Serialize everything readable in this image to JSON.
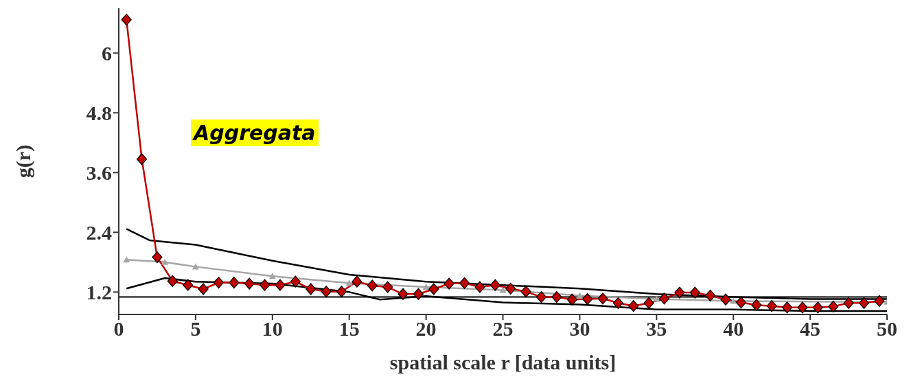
{
  "chart_data": {
    "type": "line",
    "xlabel": "spatial scale r [data units]",
    "ylabel": "g(r)",
    "annotations": [
      "Aggregata"
    ],
    "xlim": [
      0,
      50
    ],
    "xticks": [
      0,
      5,
      10,
      15,
      20,
      25,
      30,
      35,
      40,
      45,
      50
    ],
    "ylim": [
      0.75,
      6.9
    ],
    "yticks": [
      1.2,
      2.4,
      3.6,
      4.8,
      6
    ],
    "grid": false,
    "legend": false,
    "ref_lines": [
      {
        "axis": "y",
        "value": 1.1,
        "color": "#000000"
      }
    ],
    "series": [
      {
        "color": "#000000",
        "marker": "none",
        "x": [
          0.5,
          2,
          5,
          10,
          15,
          20,
          25,
          30,
          35,
          40,
          45,
          50
        ],
        "values": [
          2.47,
          2.24,
          2.15,
          1.83,
          1.55,
          1.41,
          1.34,
          1.27,
          1.16,
          1.1,
          1.06,
          1.06
        ]
      },
      {
        "color": "#000000",
        "marker": "none",
        "x": [
          0.5,
          3,
          5,
          10,
          15,
          17,
          20,
          25,
          30,
          35,
          40,
          45,
          50
        ],
        "values": [
          1.27,
          1.48,
          1.41,
          1.37,
          1.2,
          1.05,
          1.12,
          0.99,
          0.95,
          0.85,
          0.85,
          0.82,
          0.82
        ]
      },
      {
        "color": "#a6a6a6",
        "marker": "triangle",
        "x": [
          0.5,
          3,
          5,
          10,
          15,
          20,
          25,
          30,
          35,
          40,
          50
        ],
        "values": [
          1.85,
          1.8,
          1.71,
          1.52,
          1.38,
          1.3,
          1.24,
          1.13,
          1.06,
          1.02,
          1.0
        ]
      },
      {
        "color": "#c00000",
        "marker": "diamond",
        "x": [
          0.5,
          1.5,
          2.5,
          3.5,
          4.5,
          5.5,
          6.5,
          7.5,
          8.5,
          9.5,
          10.5,
          11.5,
          12.5,
          13.5,
          14.5,
          15.5,
          16.5,
          17.5,
          18.5,
          19.5,
          20.5,
          21.5,
          22.5,
          23.5,
          24.5,
          25.5,
          26.5,
          27.5,
          28.5,
          29.5,
          30.5,
          31.5,
          32.5,
          33.5,
          34.5,
          35.5,
          36.5,
          37.5,
          38.5,
          39.5,
          40.5,
          41.5,
          42.5,
          43.5,
          44.5,
          45.5,
          46.5,
          47.5,
          48.5,
          49.5
        ],
        "values": [
          6.67,
          3.87,
          1.9,
          1.42,
          1.34,
          1.26,
          1.39,
          1.39,
          1.37,
          1.34,
          1.34,
          1.41,
          1.26,
          1.21,
          1.21,
          1.41,
          1.33,
          1.3,
          1.16,
          1.16,
          1.26,
          1.37,
          1.38,
          1.3,
          1.34,
          1.27,
          1.21,
          1.1,
          1.1,
          1.05,
          1.06,
          1.07,
          0.98,
          0.92,
          0.98,
          1.07,
          1.19,
          1.19,
          1.13,
          1.05,
          0.99,
          0.94,
          0.92,
          0.89,
          0.89,
          0.89,
          0.91,
          0.98,
          0.98,
          1.02
        ]
      }
    ]
  }
}
